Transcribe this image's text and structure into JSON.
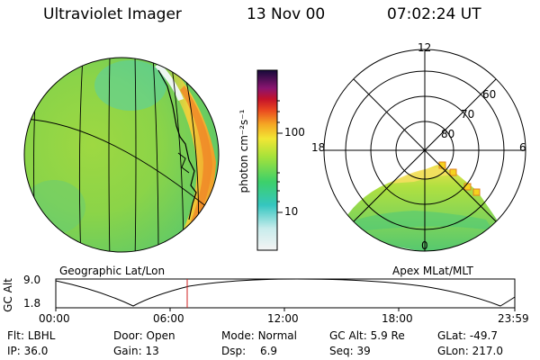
{
  "header": {
    "instrument": "Ultraviolet Imager",
    "date": "13 Nov 00",
    "time": "07:02:24 UT"
  },
  "colorbar": {
    "unit_label": "photon cm⁻²s⁻¹",
    "ticks": [
      "100",
      "10"
    ]
  },
  "geo_panel": {
    "caption": "Geographic Lat/Lon"
  },
  "polar_panel": {
    "caption": "Apex MLat/MLT",
    "mlt_labels": {
      "top": "12",
      "left": "18",
      "right": "6",
      "bottom": "0"
    },
    "lat_labels": [
      "60",
      "70",
      "80"
    ]
  },
  "timeline": {
    "axis_label": "GC Alt",
    "y_ticks": [
      "9.0",
      "1.8"
    ],
    "x_ticks": [
      "00:00",
      "06:00",
      "12:00",
      "18:00",
      "23:59"
    ],
    "current_time": "07:02"
  },
  "status": {
    "filter_label": "Flt:",
    "filter_value": "LBHL",
    "door_label": "Door:",
    "door_value": "Open",
    "mode_label": "Mode:",
    "mode_value": "Normal",
    "gcalt_label": "GC Alt:",
    "gcalt_value": "5.9 Re",
    "glat_label": "GLat:",
    "glat_value": "-49.7",
    "ip_label": "IP:",
    "ip_value": "36.0",
    "gain_label": "Gain:",
    "gain_value": "13",
    "dsp_label": "Dsp:",
    "dsp_value": "6.9",
    "seq_label": "Seq:",
    "seq_value": "39",
    "glon_label": "GLon:",
    "glon_value": "217.0"
  }
}
